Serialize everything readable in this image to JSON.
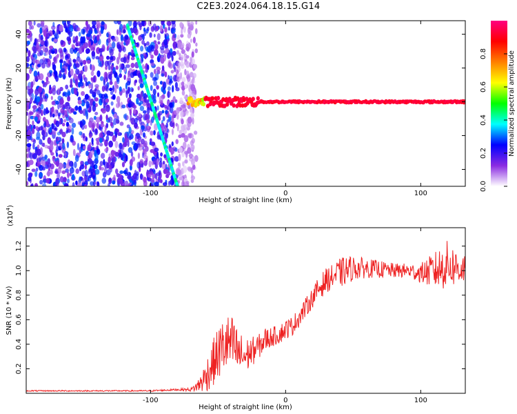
{
  "title": "C2E3.2024.064.18.15.G14",
  "chart_data": [
    {
      "type": "heatmap",
      "title": "C2E3.2024.064.18.15.G14",
      "xlabel": "Height of straight line (km)",
      "ylabel": "Frequency (Hz)",
      "xlim": [
        -192,
        133
      ],
      "ylim": [
        -50,
        48
      ],
      "x_ticks": [
        -100,
        0,
        100
      ],
      "y_ticks": [
        -40,
        -20,
        0,
        20,
        40
      ],
      "colorbar": {
        "label": "Normalized spectral amplitude",
        "range": [
          0.0,
          1.0
        ],
        "ticks": [
          0.0,
          0.2,
          0.4,
          0.6,
          0.8
        ],
        "colormap": [
          "#ffffff",
          "#8a2be2",
          "#0000ff",
          "#00ffff",
          "#00ff00",
          "#ffff00",
          "#ff8000",
          "#ff0000",
          "#ff0080"
        ]
      },
      "features": {
        "noise_region_x": [
          -192,
          -66
        ],
        "carrier_line": {
          "x": [
            -72,
            133
          ],
          "frequency": 0,
          "amplitude": 0.95
        },
        "slanted_line": {
          "x": [
            -117,
            -80
          ],
          "frequency": [
            45,
            -50
          ],
          "amplitude": 0.35
        }
      },
      "grid": false,
      "legend": "right"
    },
    {
      "type": "line",
      "title": "",
      "xlabel": "Height of straight line (km)",
      "ylabel": "SNR (10 * v/v)",
      "y_scale_label": "(x10",
      "y_scale_exponent": "4",
      "y_scale_suffix": ")",
      "xlim": [
        -192,
        133
      ],
      "ylim": [
        0,
        1.35
      ],
      "x_ticks": [
        -100,
        0,
        100
      ],
      "y_ticks": [
        0.2,
        0.4,
        0.6,
        0.8,
        1.0,
        1.2
      ],
      "series": [
        {
          "color": "#ee2222",
          "x": [
            -192,
            -180,
            -160,
            -140,
            -120,
            -100,
            -80,
            -70,
            -65,
            -60,
            -55,
            -50,
            -45,
            -40,
            -35,
            -30,
            -25,
            -20,
            -15,
            -10,
            -5,
            0,
            5,
            10,
            15,
            20,
            25,
            30,
            35,
            40,
            45,
            50,
            60,
            70,
            80,
            90,
            100,
            110,
            115,
            120,
            125,
            130,
            133
          ],
          "values": [
            0.02,
            0.02,
            0.02,
            0.02,
            0.02,
            0.02,
            0.03,
            0.03,
            0.06,
            0.12,
            0.22,
            0.32,
            0.4,
            0.4,
            0.32,
            0.3,
            0.34,
            0.38,
            0.44,
            0.46,
            0.48,
            0.52,
            0.55,
            0.62,
            0.7,
            0.78,
            0.86,
            0.92,
            0.95,
            0.98,
            1.0,
            1.02,
            1.02,
            1.01,
            1.0,
            1.0,
            0.98,
            1.0,
            1.02,
            1.05,
            1.03,
            1.02,
            1.02
          ],
          "noise_amplitude": [
            0.005,
            0.005,
            0.005,
            0.005,
            0.005,
            0.006,
            0.008,
            0.015,
            0.05,
            0.12,
            0.18,
            0.22,
            0.25,
            0.24,
            0.2,
            0.15,
            0.12,
            0.1,
            0.1,
            0.08,
            0.08,
            0.08,
            0.08,
            0.08,
            0.08,
            0.08,
            0.1,
            0.1,
            0.1,
            0.12,
            0.12,
            0.1,
            0.08,
            0.07,
            0.06,
            0.06,
            0.08,
            0.15,
            0.18,
            0.2,
            0.16,
            0.14,
            0.12
          ]
        }
      ],
      "grid": false
    }
  ]
}
